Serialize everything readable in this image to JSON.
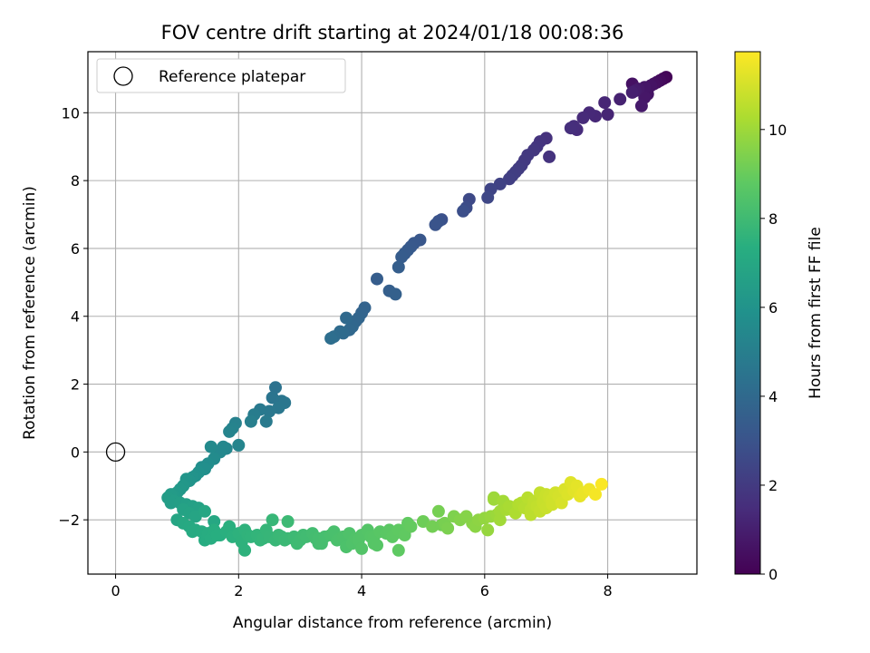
{
  "chart_data": {
    "type": "scatter",
    "title": "FOV centre drift starting at 2024/01/18 00:08:36",
    "xlabel": "Angular distance from reference (arcmin)",
    "ylabel": "Rotation from reference (arcmin)",
    "xlim": [
      -0.45,
      9.45
    ],
    "ylim": [
      -3.6,
      11.8
    ],
    "xticks": [
      0,
      2,
      4,
      6,
      8
    ],
    "yticks": [
      -2,
      0,
      2,
      4,
      6,
      8,
      10
    ],
    "grid": true,
    "legend": {
      "placement": "top-left",
      "entries": [
        "Reference platepar"
      ]
    },
    "reference_point": {
      "x": 0,
      "y": 0
    },
    "colorbar": {
      "label": "Hours from first FF file",
      "colormap": "viridis",
      "range": [
        0,
        11.75
      ],
      "ticks": [
        0,
        2,
        4,
        6,
        8,
        10
      ]
    },
    "series": [
      {
        "name": "Reference platepar",
        "x": [
          0
        ],
        "y": [
          0
        ],
        "style": "hollow-circle"
      },
      {
        "x": [
          8.95,
          8.9,
          8.85,
          8.8,
          8.75,
          8.7,
          8.6,
          8.5,
          8.45,
          8.4,
          8.65,
          8.8,
          8.55,
          8.4,
          8.6,
          8.2,
          8.0,
          7.95,
          7.8,
          7.7,
          7.6,
          7.5,
          7.45,
          7.4,
          7.05,
          7.0,
          6.9,
          6.85,
          6.8,
          6.7,
          6.65,
          6.6,
          6.55,
          6.5,
          6.45,
          6.4,
          6.25,
          6.1,
          6.05,
          5.75,
          5.7,
          5.65,
          5.3,
          5.25,
          5.2,
          4.95,
          4.85,
          4.8,
          4.75,
          4.7,
          4.65,
          4.6,
          4.55,
          4.45,
          4.25,
          4.05,
          4.0,
          3.95,
          3.9,
          3.85,
          3.8,
          3.75,
          3.7,
          3.65,
          3.55,
          3.5
        ],
        "y": [
          11.05,
          11.0,
          10.95,
          10.9,
          10.85,
          10.8,
          10.75,
          10.7,
          10.65,
          10.6,
          10.55,
          10.9,
          10.2,
          10.85,
          10.45,
          10.4,
          9.95,
          10.3,
          9.9,
          10.0,
          9.85,
          9.5,
          9.6,
          9.55,
          8.7,
          9.25,
          9.15,
          9.0,
          8.9,
          8.75,
          8.6,
          8.45,
          8.35,
          8.25,
          8.15,
          8.05,
          7.9,
          7.75,
          7.5,
          7.45,
          7.2,
          7.1,
          6.85,
          6.8,
          6.7,
          6.25,
          6.15,
          6.05,
          5.95,
          5.85,
          5.75,
          5.45,
          4.65,
          4.75,
          5.1,
          4.25,
          4.1,
          3.95,
          3.85,
          3.7,
          3.6,
          3.95,
          3.5,
          3.55,
          3.4,
          3.35
        ],
        "hours": [
          0.1,
          0.2,
          0.3,
          0.4,
          0.5,
          0.6,
          0.7,
          0.8,
          0.9,
          1.0,
          0.65,
          0.35,
          0.85,
          0.55,
          0.75,
          1.1,
          1.2,
          1.25,
          1.3,
          1.35,
          1.4,
          1.45,
          1.5,
          1.55,
          1.7,
          1.65,
          1.75,
          1.8,
          1.85,
          1.9,
          1.95,
          2.0,
          2.05,
          2.1,
          2.15,
          2.2,
          2.3,
          2.4,
          2.5,
          2.6,
          2.7,
          2.8,
          2.9,
          3.0,
          3.05,
          3.15,
          3.2,
          3.25,
          3.3,
          3.35,
          3.4,
          3.5,
          3.6,
          3.55,
          3.45,
          3.7,
          3.75,
          3.8,
          3.85,
          3.9,
          3.95,
          4.0,
          4.05,
          4.1,
          4.15,
          4.2
        ]
      },
      {
        "x": [
          2.6,
          2.55,
          2.7,
          2.75,
          2.65,
          2.5,
          2.45,
          2.35,
          2.25,
          2.2,
          2.0,
          1.95,
          1.9,
          1.85,
          1.8,
          1.75,
          1.7,
          1.6,
          1.55,
          1.5,
          1.45,
          1.4,
          1.35,
          1.3,
          1.25,
          1.2,
          1.15,
          1.1,
          1.05,
          1.0,
          0.95,
          0.9,
          0.85,
          0.95,
          1.05,
          1.15,
          1.25,
          1.35,
          1.1,
          1.2,
          1.3,
          1.0,
          0.9,
          1.45,
          1.6
        ],
        "y": [
          1.9,
          1.6,
          1.5,
          1.45,
          1.3,
          1.2,
          0.9,
          1.25,
          1.1,
          0.9,
          0.2,
          0.85,
          0.7,
          0.6,
          0.1,
          0.15,
          0.0,
          -0.2,
          0.15,
          -0.35,
          -0.5,
          -0.45,
          -0.6,
          -0.7,
          -0.75,
          -0.85,
          -0.8,
          -1.0,
          -1.1,
          -1.2,
          -1.3,
          -1.25,
          -1.35,
          -1.45,
          -1.5,
          -1.55,
          -1.6,
          -1.65,
          -1.7,
          -1.8,
          -1.9,
          -2.0,
          -1.5,
          -1.75,
          -2.05
        ],
        "hours": [
          4.4,
          4.5,
          4.55,
          4.6,
          4.65,
          4.7,
          4.8,
          4.75,
          4.9,
          5.0,
          5.3,
          5.1,
          5.2,
          5.25,
          5.35,
          5.4,
          5.45,
          5.6,
          5.55,
          5.7,
          5.8,
          5.75,
          5.9,
          5.95,
          6.0,
          6.05,
          6.1,
          6.2,
          6.25,
          6.3,
          6.35,
          6.4,
          6.45,
          6.5,
          6.55,
          6.6,
          6.65,
          6.7,
          6.75,
          6.8,
          6.85,
          6.9,
          6.5,
          6.95,
          7.0
        ]
      },
      {
        "x": [
          1.1,
          1.2,
          1.3,
          1.4,
          1.5,
          1.6,
          1.7,
          1.8,
          1.9,
          2.0,
          2.1,
          2.2,
          2.3,
          2.4,
          2.5,
          2.6,
          2.7,
          2.8,
          2.9,
          3.0,
          3.1,
          3.2,
          3.3,
          3.4,
          3.5,
          3.6,
          3.7,
          3.8,
          3.9,
          4.0,
          4.1,
          4.2,
          4.3,
          4.4,
          4.5,
          4.6,
          4.7,
          4.8,
          1.25,
          1.55,
          1.85,
          2.15,
          2.45,
          2.75,
          3.05,
          3.35,
          3.65,
          3.95,
          4.25,
          4.55,
          2.1,
          2.55,
          2.8,
          3.3,
          3.75,
          4.0,
          4.2,
          4.6,
          1.45,
          1.65,
          2.05,
          2.35,
          2.65,
          2.95,
          3.25,
          3.55,
          3.85,
          4.15,
          4.45,
          4.75
        ],
        "y": [
          -2.1,
          -2.2,
          -2.3,
          -2.35,
          -2.4,
          -2.3,
          -2.45,
          -2.35,
          -2.5,
          -2.4,
          -2.3,
          -2.5,
          -2.45,
          -2.55,
          -2.5,
          -2.6,
          -2.5,
          -2.55,
          -2.5,
          -2.6,
          -2.5,
          -2.4,
          -2.55,
          -2.5,
          -2.45,
          -2.6,
          -2.5,
          -2.4,
          -2.55,
          -2.45,
          -2.3,
          -2.5,
          -2.35,
          -2.4,
          -2.5,
          -2.3,
          -2.45,
          -2.2,
          -2.35,
          -2.55,
          -2.2,
          -2.45,
          -2.3,
          -2.6,
          -2.45,
          -2.7,
          -2.55,
          -2.6,
          -2.75,
          -2.4,
          -2.9,
          -2.0,
          -2.05,
          -2.7,
          -2.8,
          -2.85,
          -2.7,
          -2.9,
          -2.6,
          -2.45,
          -2.65,
          -2.6,
          -2.45,
          -2.7,
          -2.55,
          -2.35,
          -2.7,
          -2.5,
          -2.3,
          -2.1
        ],
        "hours": [
          7.05,
          7.1,
          7.15,
          7.2,
          7.25,
          7.3,
          7.35,
          7.4,
          7.45,
          7.5,
          7.55,
          7.6,
          7.65,
          7.7,
          7.75,
          7.8,
          7.85,
          7.9,
          7.95,
          8.0,
          8.05,
          8.1,
          8.15,
          8.2,
          8.25,
          8.3,
          8.35,
          8.4,
          8.45,
          8.5,
          8.55,
          8.6,
          8.65,
          8.7,
          8.75,
          8.8,
          8.85,
          8.9,
          7.12,
          7.28,
          7.42,
          7.58,
          7.72,
          7.88,
          8.02,
          8.18,
          8.32,
          8.48,
          8.62,
          8.78,
          7.52,
          7.78,
          7.92,
          8.12,
          8.36,
          8.5,
          8.6,
          8.8,
          7.22,
          7.32,
          7.52,
          7.66,
          7.82,
          7.98,
          8.12,
          8.28,
          8.42,
          8.58,
          8.72,
          8.86
        ]
      },
      {
        "x": [
          5.0,
          5.15,
          5.25,
          5.35,
          5.4,
          5.5,
          5.6,
          5.7,
          5.8,
          5.85,
          5.9,
          6.0,
          6.05,
          6.1,
          6.15,
          6.2,
          6.25,
          6.3,
          6.35,
          6.4,
          6.5,
          6.55,
          6.6,
          6.65,
          6.7,
          6.75,
          6.8,
          6.85,
          6.9,
          6.95,
          7.0,
          7.05,
          7.1,
          7.15,
          7.2,
          7.25,
          7.3,
          7.35,
          7.4,
          7.45,
          7.5,
          7.55,
          7.6,
          7.7,
          7.8,
          7.9,
          6.8,
          6.9,
          7.0,
          7.1,
          6.75,
          6.95,
          7.05,
          6.15,
          6.25,
          5.3
        ],
        "y": [
          -2.05,
          -2.2,
          -1.75,
          -2.1,
          -2.25,
          -1.9,
          -2.0,
          -1.9,
          -2.1,
          -2.2,
          -2.0,
          -1.95,
          -2.3,
          -1.9,
          -1.4,
          -1.85,
          -2.0,
          -1.45,
          -1.7,
          -1.6,
          -1.8,
          -1.55,
          -1.5,
          -1.65,
          -1.35,
          -1.7,
          -1.45,
          -1.6,
          -1.2,
          -1.5,
          -1.25,
          -1.35,
          -1.4,
          -1.2,
          -1.3,
          -1.5,
          -1.1,
          -1.25,
          -0.9,
          -1.15,
          -1.0,
          -1.3,
          -1.2,
          -1.1,
          -1.25,
          -0.95,
          -1.55,
          -1.75,
          -1.65,
          -1.55,
          -1.85,
          -1.45,
          -1.3,
          -1.35,
          -1.75,
          -2.15
        ],
        "hours": [
          9.1,
          9.2,
          9.25,
          9.3,
          9.35,
          9.4,
          9.5,
          9.55,
          9.6,
          9.65,
          9.7,
          9.8,
          9.85,
          9.9,
          10.0,
          9.95,
          10.05,
          10.1,
          10.15,
          10.2,
          10.3,
          10.35,
          10.4,
          10.45,
          10.5,
          10.55,
          10.6,
          10.65,
          10.7,
          10.75,
          10.8,
          10.85,
          10.9,
          10.95,
          11.0,
          11.05,
          11.1,
          11.15,
          11.2,
          11.25,
          11.3,
          11.35,
          11.4,
          11.5,
          11.6,
          11.7,
          10.6,
          10.7,
          10.8,
          10.9,
          10.55,
          10.75,
          10.85,
          9.95,
          10.05,
          9.2
        ]
      }
    ]
  }
}
